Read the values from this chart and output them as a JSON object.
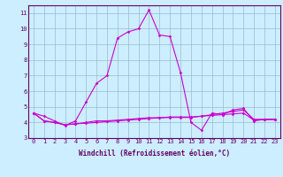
{
  "background_color": "#cceeff",
  "line_color": "#cc00cc",
  "grid_color": "#99bbcc",
  "xlabel": "Windchill (Refroidissement éolien,°C)",
  "xlim": [
    -0.5,
    23.5
  ],
  "ylim": [
    3,
    11.5
  ],
  "yticks": [
    3,
    4,
    5,
    6,
    7,
    8,
    9,
    10,
    11
  ],
  "xticks": [
    0,
    1,
    2,
    3,
    4,
    5,
    6,
    7,
    8,
    9,
    10,
    11,
    12,
    13,
    14,
    15,
    16,
    17,
    18,
    19,
    20,
    21,
    22,
    23
  ],
  "series1_x": [
    0,
    1,
    2,
    3,
    4,
    5,
    6,
    7,
    8,
    9,
    10,
    11,
    12,
    13,
    14,
    15,
    16,
    17,
    18,
    19,
    20,
    21,
    22,
    23
  ],
  "series1_y": [
    4.6,
    4.4,
    4.1,
    3.8,
    4.1,
    5.3,
    6.5,
    7.0,
    9.4,
    9.8,
    10.0,
    11.2,
    9.6,
    9.5,
    7.2,
    4.0,
    3.5,
    4.6,
    4.5,
    4.8,
    4.9,
    4.1,
    4.2,
    4.2
  ],
  "series2_x": [
    0,
    1,
    2,
    3,
    4,
    5,
    6,
    7,
    8,
    9,
    10,
    11,
    12,
    13,
    14,
    15,
    16,
    17,
    18,
    19,
    20,
    21,
    22,
    23
  ],
  "series2_y": [
    4.6,
    4.1,
    4.0,
    3.85,
    3.9,
    4.0,
    4.1,
    4.1,
    4.15,
    4.2,
    4.25,
    4.3,
    4.3,
    4.35,
    4.35,
    4.35,
    4.4,
    4.5,
    4.6,
    4.7,
    4.8,
    4.2,
    4.2,
    4.2
  ],
  "series3_x": [
    0,
    1,
    2,
    3,
    4,
    5,
    6,
    7,
    8,
    9,
    10,
    11,
    12,
    13,
    14,
    15,
    16,
    17,
    18,
    19,
    20,
    21,
    22,
    23
  ],
  "series3_y": [
    4.6,
    4.1,
    4.0,
    3.85,
    3.92,
    3.95,
    4.0,
    4.05,
    4.1,
    4.15,
    4.2,
    4.25,
    4.3,
    4.32,
    4.32,
    4.32,
    4.4,
    4.45,
    4.5,
    4.55,
    4.6,
    4.15,
    4.18,
    4.2
  ],
  "tick_fontsize": 5,
  "xlabel_fontsize": 5.5,
  "tick_color": "#660066",
  "spine_color": "#660066"
}
